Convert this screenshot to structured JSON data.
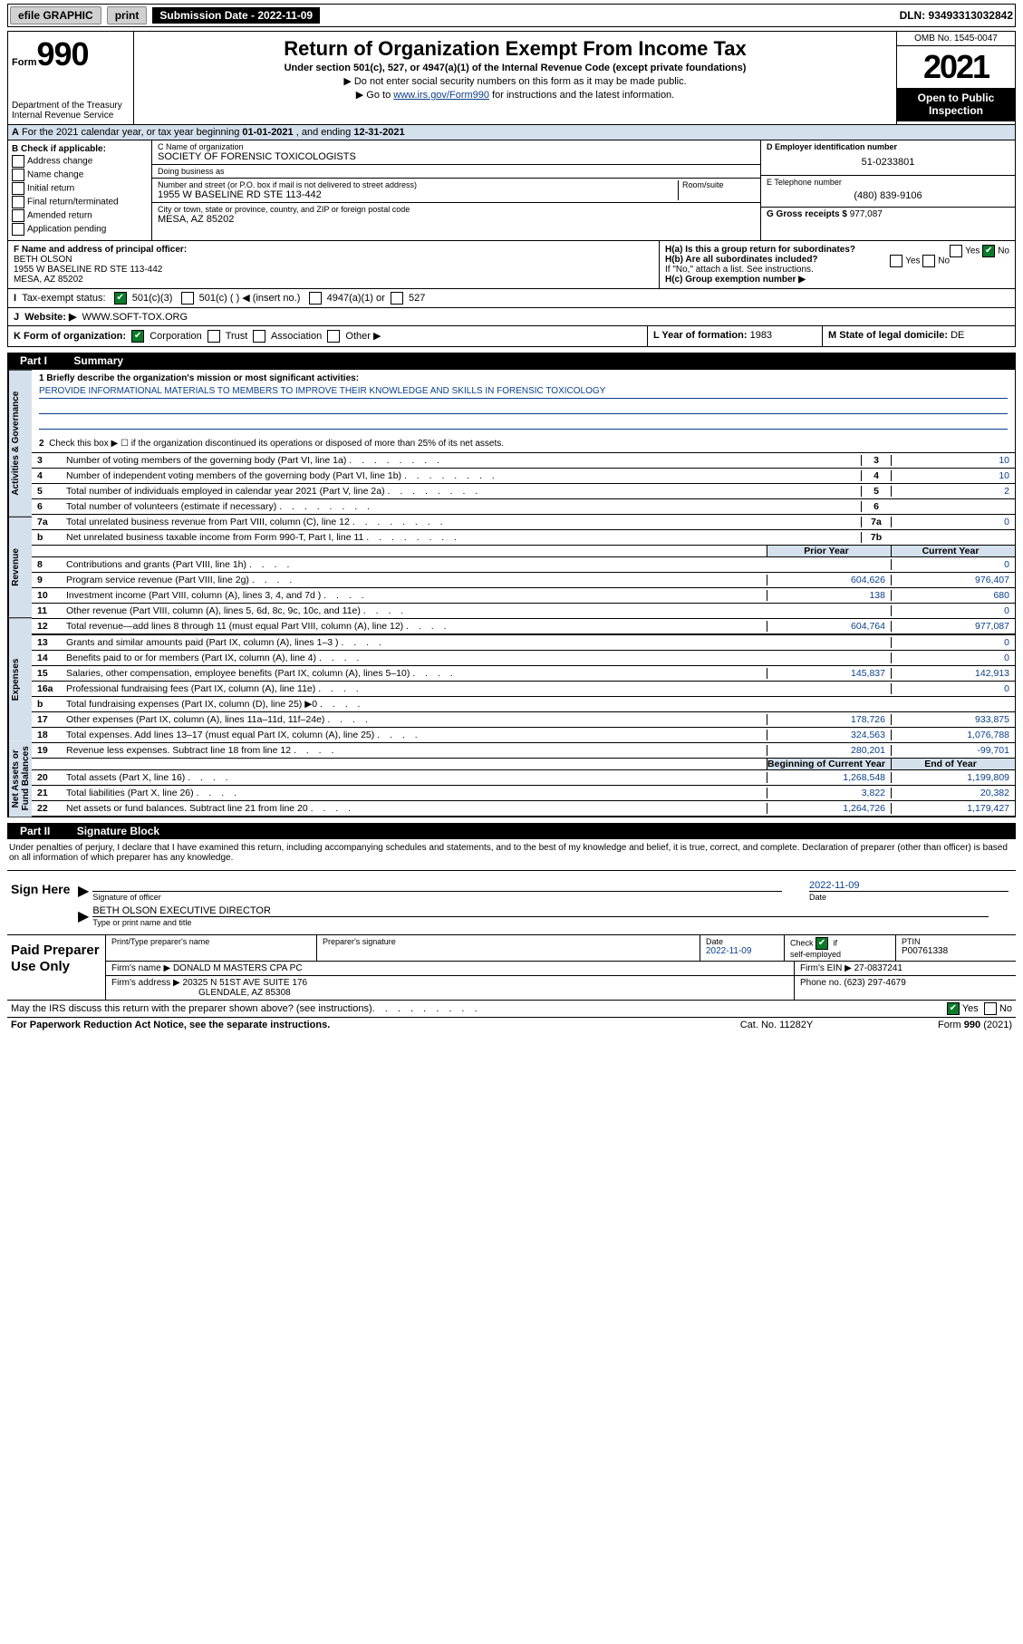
{
  "colors": {
    "link": "#0a3f8a",
    "checked_green": "#0a7a2a",
    "shade_blue": "#d4e0ec",
    "grey": "#d0d0d0",
    "black": "#000000",
    "white": "#ffffff"
  },
  "topbar": {
    "efile": "efile GRAPHIC",
    "print": "print",
    "submission_label": "Submission Date - 2022-11-09",
    "dln": "DLN: 93493313032842"
  },
  "header": {
    "form_label": "Form",
    "form_number": "990",
    "title": "Return of Organization Exempt From Income Tax",
    "sub": "Under section 501(c), 527, or 4947(a)(1) of the Internal Revenue Code (except private foundations)",
    "note1": "▶ Do not enter social security numbers on this form as it may be made public.",
    "note2_prefix": "▶ Go to ",
    "note2_link": "www.irs.gov/Form990",
    "note2_suffix": " for instructions and the latest information.",
    "dept": "Department of the Treasury",
    "irs": "Internal Revenue Service",
    "omb": "OMB No. 1545-0047",
    "year": "2021",
    "open_public": "Open to Public Inspection"
  },
  "row_a": {
    "label_a": "A",
    "text_prefix": "For the 2021 calendar year, or tax year beginning ",
    "begin": "01-01-2021",
    "mid": " , and ending ",
    "end": "12-31-2021"
  },
  "col_b": {
    "label": "B Check if applicable:",
    "items": [
      "Address change",
      "Name change",
      "Initial return",
      "Final return/terminated",
      "Amended return",
      "Application pending"
    ]
  },
  "col_c": {
    "name_label": "C Name of organization",
    "name": "SOCIETY OF FORENSIC TOXICOLOGISTS",
    "dba_label": "Doing business as",
    "dba": "",
    "street_label": "Number and street (or P.O. box if mail is not delivered to street address)",
    "room_label": "Room/suite",
    "street": "1955 W BASELINE RD STE 113-442",
    "city_label": "City or town, state or province, country, and ZIP or foreign postal code",
    "city": "MESA, AZ  85202"
  },
  "col_de": {
    "d_label": "D Employer identification number",
    "ein": "51-0233801",
    "e_label": "E Telephone number",
    "phone": "(480) 839-9106",
    "g_label": "G Gross receipts $",
    "gross": "977,087"
  },
  "row_f": {
    "f_label": "F Name and address of principal officer:",
    "officer": "BETH OLSON",
    "addr1": "1955 W BASELINE RD STE 113-442",
    "addr2": "MESA, AZ  85202"
  },
  "row_h": {
    "ha_label": "H(a)  Is this a group return for subordinates?",
    "ha_yes": "Yes",
    "ha_no": "No",
    "hb_label": "H(b)  Are all subordinates included?",
    "hb_yes": "Yes",
    "hb_no": "No",
    "hb_note": "If \"No,\" attach a list. See instructions.",
    "hc_label": "H(c)  Group exemption number ▶"
  },
  "row_i": {
    "label": "I",
    "text": "Tax-exempt status:",
    "opt1": "501(c)(3)",
    "opt2": "501(c) (   ) ◀ (insert no.)",
    "opt3": "4947(a)(1) or",
    "opt4": "527"
  },
  "row_j": {
    "label": "J",
    "text": "Website: ▶",
    "url": "WWW.SOFT-TOX.ORG"
  },
  "row_k": {
    "k_label": "K Form of organization:",
    "corp": "Corporation",
    "trust": "Trust",
    "assoc": "Association",
    "other": "Other ▶",
    "l_label": "L Year of formation:",
    "l_val": "1983",
    "m_label": "M State of legal domicile:",
    "m_val": "DE"
  },
  "part1": {
    "bar_num": "Part I",
    "bar_title": "Summary",
    "vtabs": [
      "Activities & Governance",
      "Revenue",
      "Expenses",
      "Net Assets or Fund Balances"
    ],
    "line1_label": "1  Briefly describe the organization's mission or most significant activities:",
    "mission": "PEROVIDE INFORMATIONAL MATERIALS TO MEMBERS TO IMPROVE THEIR KNOWLEDGE AND SKILLS IN FORENSIC TOXICOLOGY",
    "line2": "Check this box ▶ ☐ if the organization discontinued its operations or disposed of more than 25% of its net assets.",
    "rows_gov": [
      {
        "n": "3",
        "label": "Number of voting members of the governing body (Part VI, line 1a)",
        "box": "3",
        "val": "10"
      },
      {
        "n": "4",
        "label": "Number of independent voting members of the governing body (Part VI, line 1b)",
        "box": "4",
        "val": "10"
      },
      {
        "n": "5",
        "label": "Total number of individuals employed in calendar year 2021 (Part V, line 2a)",
        "box": "5",
        "val": "2"
      },
      {
        "n": "6",
        "label": "Total number of volunteers (estimate if necessary)",
        "box": "6",
        "val": ""
      },
      {
        "n": "7a",
        "label": "Total unrelated business revenue from Part VIII, column (C), line 12",
        "box": "7a",
        "val": "0"
      },
      {
        "n": "b",
        "label": "Net unrelated business taxable income from Form 990-T, Part I, line 11",
        "box": "7b",
        "val": ""
      }
    ],
    "col_hdr_prior": "Prior Year",
    "col_hdr_curr": "Current Year",
    "rows_rev": [
      {
        "n": "8",
        "label": "Contributions and grants (Part VIII, line 1h)",
        "a": "",
        "b": "0"
      },
      {
        "n": "9",
        "label": "Program service revenue (Part VIII, line 2g)",
        "a": "604,626",
        "b": "976,407"
      },
      {
        "n": "10",
        "label": "Investment income (Part VIII, column (A), lines 3, 4, and 7d )",
        "a": "138",
        "b": "680"
      },
      {
        "n": "11",
        "label": "Other revenue (Part VIII, column (A), lines 5, 6d, 8c, 9c, 10c, and 11e)",
        "a": "",
        "b": "0"
      },
      {
        "n": "12",
        "label": "Total revenue—add lines 8 through 11 (must equal Part VIII, column (A), line 12)",
        "a": "604,764",
        "b": "977,087"
      }
    ],
    "rows_exp": [
      {
        "n": "13",
        "label": "Grants and similar amounts paid (Part IX, column (A), lines 1–3 )",
        "a": "",
        "b": "0"
      },
      {
        "n": "14",
        "label": "Benefits paid to or for members (Part IX, column (A), line 4)",
        "a": "",
        "b": "0"
      },
      {
        "n": "15",
        "label": "Salaries, other compensation, employee benefits (Part IX, column (A), lines 5–10)",
        "a": "145,837",
        "b": "142,913"
      },
      {
        "n": "16a",
        "label": "Professional fundraising fees (Part IX, column (A), line 11e)",
        "a": "",
        "b": "0"
      },
      {
        "n": "b",
        "label": "Total fundraising expenses (Part IX, column (D), line 25) ▶0",
        "a": "grey",
        "b": "grey"
      },
      {
        "n": "17",
        "label": "Other expenses (Part IX, column (A), lines 11a–11d, 11f–24e)",
        "a": "178,726",
        "b": "933,875"
      },
      {
        "n": "18",
        "label": "Total expenses. Add lines 13–17 (must equal Part IX, column (A), line 25)",
        "a": "324,563",
        "b": "1,076,788"
      },
      {
        "n": "19",
        "label": "Revenue less expenses. Subtract line 18 from line 12",
        "a": "280,201",
        "b": "-99,701"
      }
    ],
    "col_hdr_begin": "Beginning of Current Year",
    "col_hdr_end": "End of Year",
    "rows_net": [
      {
        "n": "20",
        "label": "Total assets (Part X, line 16)",
        "a": "1,268,548",
        "b": "1,199,809"
      },
      {
        "n": "21",
        "label": "Total liabilities (Part X, line 26)",
        "a": "3,822",
        "b": "20,382"
      },
      {
        "n": "22",
        "label": "Net assets or fund balances. Subtract line 21 from line 20",
        "a": "1,264,726",
        "b": "1,179,427"
      }
    ]
  },
  "part2": {
    "bar_num": "Part II",
    "bar_title": "Signature Block",
    "penalty": "Under penalties of perjury, I declare that I have examined this return, including accompanying schedules and statements, and to the best of my knowledge and belief, it is true, correct, and complete. Declaration of preparer (other than officer) is based on all information of which preparer has any knowledge.",
    "sign_here": "Sign Here",
    "sig_officer_label": "Signature of officer",
    "sig_date": "2022-11-09",
    "sig_date_label": "Date",
    "sig_name": "BETH OLSON  EXECUTIVE DIRECTOR",
    "sig_name_label": "Type or print name and title",
    "paid_prep": "Paid Preparer Use Only",
    "prep_name_label": "Print/Type preparer's name",
    "prep_name": "",
    "prep_sig_label": "Preparer's signature",
    "prep_date_label": "Date",
    "prep_date": "2022-11-09",
    "prep_check_label": "Check ☑ if self-employed",
    "ptin_label": "PTIN",
    "ptin": "P00761338",
    "firm_name_label": "Firm's name      ▶",
    "firm_name": "DONALD M MASTERS CPA PC",
    "firm_ein_label": "Firm's EIN ▶",
    "firm_ein": "27-0837241",
    "firm_addr_label": "Firm's address ▶",
    "firm_addr1": "20325 N 51ST AVE SUITE 176",
    "firm_addr2": "GLENDALE, AZ  85308",
    "firm_phone_label": "Phone no.",
    "firm_phone": "(623) 297-4679",
    "may_irs": "May the IRS discuss this return with the preparer shown above? (see instructions)",
    "may_yes": "Yes",
    "may_no": "No"
  },
  "footer": {
    "left": "For Paperwork Reduction Act Notice, see the separate instructions.",
    "mid": "Cat. No. 11282Y",
    "right_prefix": "Form ",
    "right_form": "990",
    "right_suffix": " (2021)"
  }
}
